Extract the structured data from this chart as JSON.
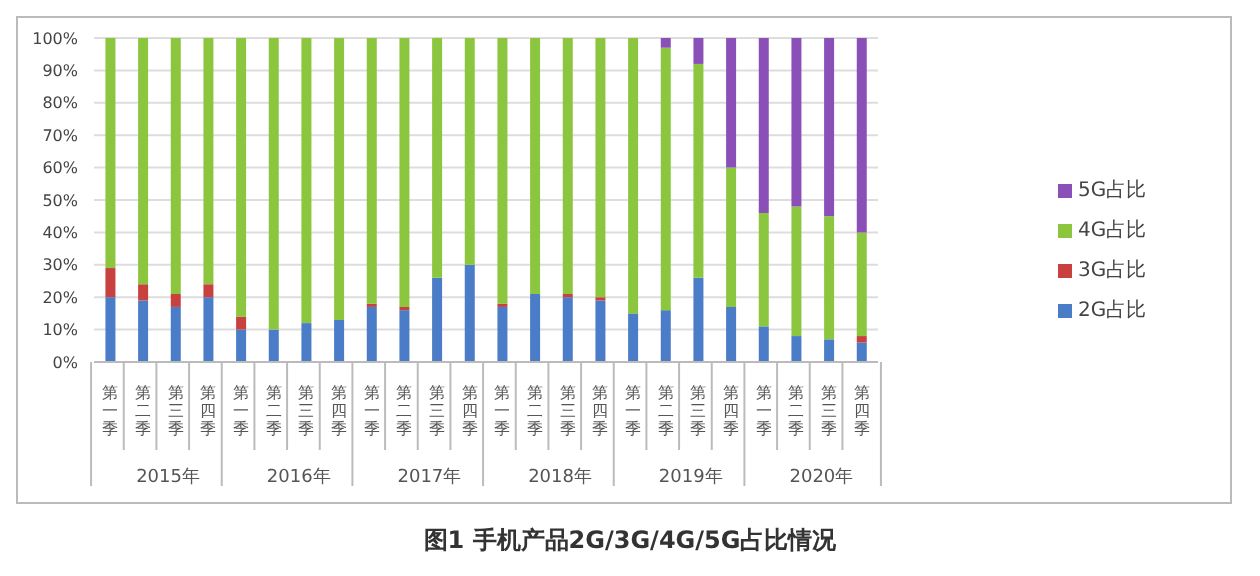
{
  "chart_data": {
    "type": "bar",
    "stacked": true,
    "title": "图1 手机产品2G/3G/4G/5G占比情况",
    "categories": [
      "第一季",
      "第二季",
      "第三季",
      "第四季",
      "第一季",
      "第二季",
      "第三季",
      "第四季",
      "第一季",
      "第二季",
      "第三季",
      "第四季",
      "第一季",
      "第二季",
      "第三季",
      "第四季",
      "第一季",
      "第二季",
      "第三季",
      "第四季",
      "第一季",
      "第二季",
      "第三季",
      "第四季"
    ],
    "annotations": [
      "2015年",
      "2016年",
      "2017年",
      "2018年",
      "2019年",
      "2020年"
    ],
    "series": [
      {
        "name": "2G占比",
        "color": "#4a7cc7",
        "values": [
          20,
          19,
          17,
          20,
          10,
          10,
          12,
          13,
          17,
          16,
          26,
          30,
          17,
          21,
          20,
          19,
          15,
          16,
          26,
          17,
          11,
          8,
          7,
          6
        ]
      },
      {
        "name": "3G占比",
        "color": "#c9413f",
        "values": [
          9,
          5,
          4,
          4,
          4,
          0,
          0,
          0,
          1,
          1,
          0,
          0,
          1,
          0,
          1,
          1,
          0,
          0,
          0,
          0,
          0,
          0,
          0,
          2
        ]
      },
      {
        "name": "4G占比",
        "color": "#8cc63f",
        "values": [
          71,
          76,
          79,
          76,
          86,
          90,
          88,
          87,
          82,
          83,
          74,
          70,
          82,
          79,
          79,
          80,
          85,
          81,
          66,
          43,
          35,
          40,
          38,
          32
        ]
      },
      {
        "name": "5G占比",
        "color": "#8a50b8",
        "values": [
          0,
          0,
          0,
          0,
          0,
          0,
          0,
          0,
          0,
          0,
          0,
          0,
          0,
          0,
          0,
          0,
          0,
          3,
          8,
          40,
          54,
          52,
          55,
          60
        ]
      }
    ],
    "ylim": [
      0,
      100
    ],
    "yticks": [
      {
        "value": 0,
        "label": "0%"
      },
      {
        "value": 10,
        "label": "10%"
      },
      {
        "value": 20,
        "label": "20%"
      },
      {
        "value": 30,
        "label": "30%"
      },
      {
        "value": 40,
        "label": "40%"
      },
      {
        "value": 50,
        "label": "50%"
      },
      {
        "value": 60,
        "label": "60%"
      },
      {
        "value": 70,
        "label": "70%"
      },
      {
        "value": 80,
        "label": "80%"
      },
      {
        "value": 90,
        "label": "90%"
      },
      {
        "value": 100,
        "label": "100%"
      }
    ],
    "grid": "y",
    "legend": "right"
  }
}
